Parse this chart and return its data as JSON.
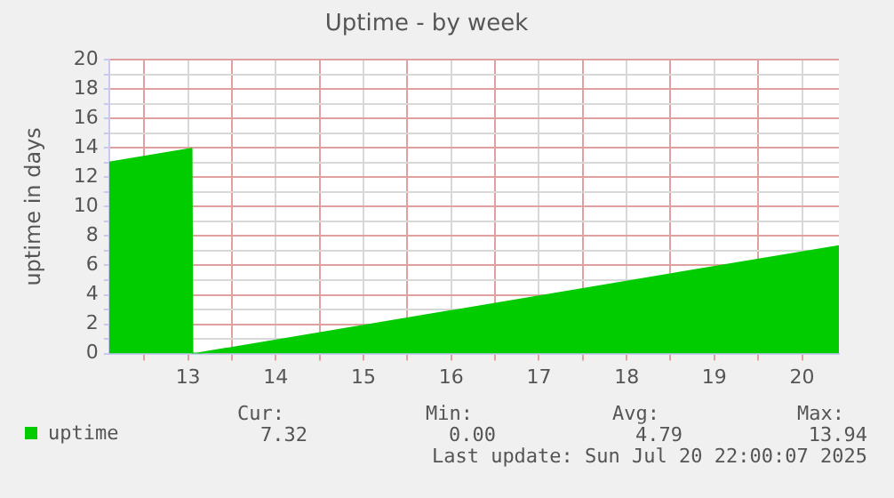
{
  "chart_data": {
    "type": "area",
    "title": "Uptime - by week",
    "ylabel": "uptime in days",
    "x": [
      12.6,
      13.54,
      13.55,
      13.6,
      20.92
    ],
    "series": [
      {
        "name": "uptime",
        "color": "#00cc00",
        "values": [
          13.0,
          13.94,
          0,
          0,
          7.32
        ]
      }
    ],
    "xlim": [
      12.6,
      20.92
    ],
    "xticks": [
      {
        "value": 13,
        "label": null
      },
      {
        "value": 13.5,
        "label": "13"
      },
      {
        "value": 14,
        "label": null
      },
      {
        "value": 14.5,
        "label": "14"
      },
      {
        "value": 15,
        "label": null
      },
      {
        "value": 15.5,
        "label": "15"
      },
      {
        "value": 16,
        "label": null
      },
      {
        "value": 16.5,
        "label": "16"
      },
      {
        "value": 17,
        "label": null
      },
      {
        "value": 17.5,
        "label": "17"
      },
      {
        "value": 18,
        "label": null
      },
      {
        "value": 18.5,
        "label": "18"
      },
      {
        "value": 19,
        "label": null
      },
      {
        "value": 19.5,
        "label": "19"
      },
      {
        "value": 20,
        "label": null
      },
      {
        "value": 20.5,
        "label": "20"
      }
    ],
    "ylim": [
      0,
      20
    ],
    "yticks": [
      0,
      {
        "value": 1,
        "label": null
      },
      2,
      {
        "value": 3,
        "label": null
      },
      4,
      {
        "value": 5,
        "label": null
      },
      6,
      {
        "value": 7,
        "label": null
      },
      8,
      {
        "value": 9,
        "label": null
      },
      10,
      {
        "value": 11,
        "label": null
      },
      12,
      {
        "value": 13,
        "label": null
      },
      14,
      {
        "value": 15,
        "label": null
      },
      16,
      {
        "value": 17,
        "label": null
      },
      18,
      {
        "value": 19,
        "label": null
      },
      20
    ],
    "grid": true,
    "legend": "bottom left",
    "marker": "none",
    "annotations": [
      "Cur:",
      "Min:",
      "Avg:",
      "Max:",
      "7.32",
      "0.00",
      "4.79",
      "13.94",
      "Last update: Sun Jul 20 22:00:07 2025"
    ]
  }
}
